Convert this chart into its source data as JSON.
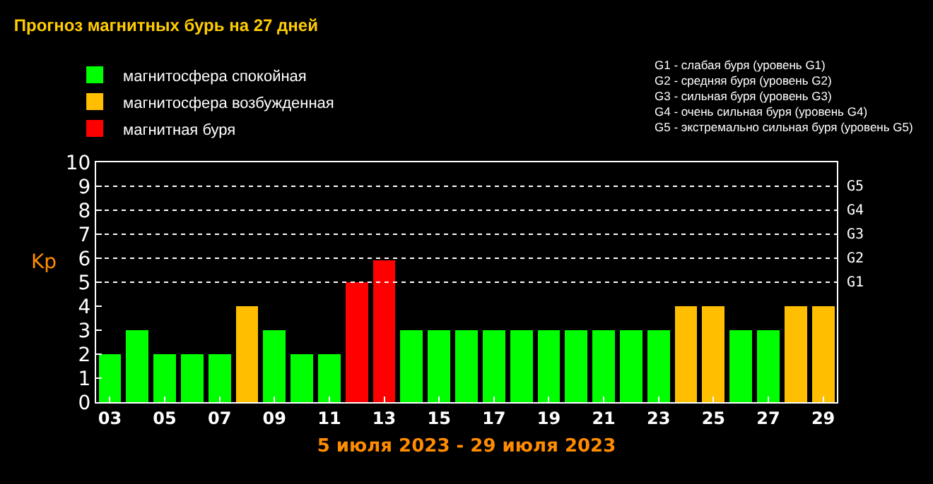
{
  "chart_data": {
    "type": "bar",
    "title": "Прогноз магнитных бурь на 27 дней",
    "xlabel": "5 июля 2023 - 29 июля 2023",
    "ylabel": "Kp",
    "categories": [
      "03",
      null,
      "05",
      null,
      "07",
      null,
      "09",
      null,
      "11",
      null,
      "13",
      null,
      "15",
      null,
      "17",
      null,
      "19",
      null,
      "21",
      null,
      "23",
      null,
      "25",
      null,
      "27",
      null,
      "29"
    ],
    "stacked": true,
    "series": [
      {
        "name": "магнитосфера спокойная",
        "color": "#00ff00",
        "values": [
          2,
          3,
          2,
          2,
          2,
          null,
          3,
          2,
          2,
          null,
          null,
          3,
          3,
          3,
          3,
          3,
          3,
          3,
          3,
          3,
          3,
          null,
          null,
          3,
          3,
          null,
          null
        ]
      },
      {
        "name": "магнитосфера возбужденная",
        "color": "#ffbf00",
        "values": [
          null,
          null,
          null,
          null,
          null,
          4,
          null,
          null,
          null,
          null,
          null,
          null,
          null,
          null,
          null,
          null,
          null,
          null,
          null,
          null,
          null,
          4,
          4,
          null,
          null,
          4,
          4
        ]
      },
      {
        "name": "магнитная буря",
        "color": "#ff0000",
        "values": [
          null,
          null,
          null,
          null,
          null,
          null,
          null,
          null,
          null,
          5,
          5.9,
          null,
          null,
          null,
          null,
          null,
          null,
          null,
          null,
          null,
          null,
          null,
          null,
          null,
          null,
          null,
          null
        ]
      }
    ],
    "ylim": [
      0,
      10
    ],
    "yticks": [
      0,
      1,
      2,
      3,
      4,
      5,
      6,
      7,
      8,
      9,
      10
    ],
    "ref_lines": [
      {
        "axis": "y",
        "value": 5,
        "label": "G1",
        "color": "#ffffff",
        "line_style": "dotted"
      },
      {
        "axis": "y",
        "value": 6,
        "label": "G2",
        "color": "#ffffff",
        "line_style": "dotted"
      },
      {
        "axis": "y",
        "value": 7,
        "label": "G3",
        "color": "#ffffff",
        "line_style": "dotted"
      },
      {
        "axis": "y",
        "value": 8,
        "label": "G4",
        "color": "#ffffff",
        "line_style": "dotted"
      },
      {
        "axis": "y",
        "value": 9,
        "label": "G5",
        "color": "#ffffff",
        "line_style": "dotted"
      }
    ],
    "legend": "top left",
    "annotations": [
      "G1 - слабая буря (уровень G1)\nG2 - средняя буря (уровень G2)\nG3 - сильная буря (уровень G3)\nG4 - очень сильная буря (уровень G4)\nG5 - экстремально сильная буря (уровень G5)"
    ]
  }
}
